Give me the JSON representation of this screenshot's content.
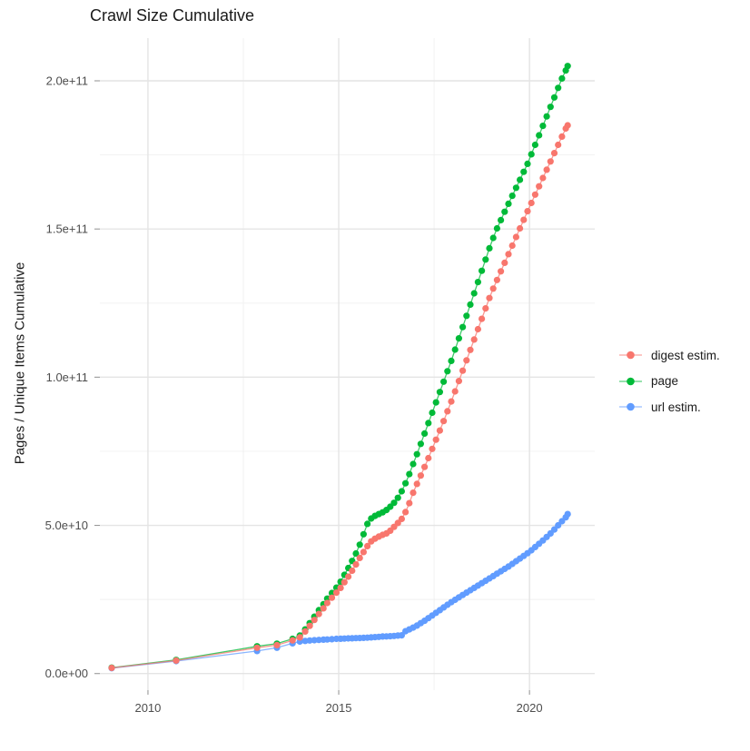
{
  "chart_data": {
    "type": "scatter",
    "title": "Crawl Size Cumulative",
    "xlabel": "",
    "ylabel": "Pages / Unique Items Cumulative",
    "legend_position": "right",
    "grid": true,
    "background": "#ffffff",
    "grid_major_color": "#e4e4e4",
    "grid_minor_color": "#f0f0f0",
    "tick_color": "#999999",
    "tick_label_color": "#4d4d4d",
    "x_domain": [
      2008.74,
      2021.71
    ],
    "y_domain_e9": [
      -5.6,
      214.4
    ],
    "x_major_ticks": [
      {
        "value": 2010,
        "label": "2010"
      },
      {
        "value": 2015,
        "label": "2015"
      },
      {
        "value": 2020,
        "label": "2020"
      }
    ],
    "x_minor_ticks": [
      2012.5,
      2017.5
    ],
    "y_major_ticks": [
      {
        "value_e9": 0,
        "label": "0.0e+00"
      },
      {
        "value_e9": 50,
        "label": "5.0e+10"
      },
      {
        "value_e9": 100,
        "label": "1.0e+11"
      },
      {
        "value_e9": 150,
        "label": "1.5e+11"
      },
      {
        "value_e9": 200,
        "label": "2.0e+11"
      }
    ],
    "y_minor_ticks_e9": [
      25,
      75,
      125,
      175
    ],
    "value_unit": "1e9",
    "draw_order": [
      1,
      2,
      0
    ],
    "x": [
      2009.05,
      2010.74,
      2012.86,
      2013.38,
      2013.79,
      2013.98,
      2014.12,
      2014.24,
      2014.36,
      2014.48,
      2014.6,
      2014.7,
      2014.82,
      2014.94,
      2015.05,
      2015.15,
      2015.25,
      2015.35,
      2015.45,
      2015.55,
      2015.65,
      2015.75,
      2015.85,
      2015.95,
      2016.05,
      2016.15,
      2016.25,
      2016.35,
      2016.45,
      2016.55,
      2016.65,
      2016.75,
      2016.85,
      2016.95,
      2017.05,
      2017.15,
      2017.25,
      2017.35,
      2017.45,
      2017.55,
      2017.65,
      2017.75,
      2017.85,
      2017.95,
      2018.05,
      2018.15,
      2018.25,
      2018.35,
      2018.45,
      2018.55,
      2018.65,
      2018.75,
      2018.85,
      2018.95,
      2019.05,
      2019.15,
      2019.25,
      2019.35,
      2019.45,
      2019.55,
      2019.65,
      2019.75,
      2019.85,
      2019.95,
      2020.05,
      2020.15,
      2020.25,
      2020.35,
      2020.45,
      2020.55,
      2020.65,
      2020.75,
      2020.85,
      2020.95,
      2021.0
    ],
    "series": [
      {
        "name": "digest estim.",
        "color": "#F8766D",
        "values_e9": [
          1.9,
          4.4,
          8.7,
          9.6,
          11.2,
          12.2,
          14.2,
          16.1,
          18.1,
          20.1,
          22.0,
          23.8,
          25.6,
          27.3,
          28.9,
          30.8,
          32.7,
          34.7,
          36.8,
          39.0,
          41.0,
          43.0,
          44.6,
          45.5,
          46.2,
          46.8,
          47.3,
          48.2,
          49.5,
          50.8,
          52.2,
          54.5,
          57.5,
          61.0,
          64.0,
          66.8,
          69.7,
          72.7,
          75.8,
          78.9,
          82.0,
          85.2,
          88.5,
          91.8,
          95.2,
          98.7,
          102.2,
          105.7,
          109.2,
          112.7,
          116.2,
          119.7,
          123.2,
          126.7,
          129.9,
          132.8,
          135.7,
          138.6,
          141.5,
          144.4,
          147.3,
          150.2,
          153.1,
          156.0,
          158.8,
          161.6,
          164.4,
          167.2,
          170.0,
          172.8,
          175.6,
          178.4,
          181.2,
          183.9,
          185.0
        ]
      },
      {
        "name": "page",
        "color": "#00BA38",
        "values_e9": [
          2.0,
          4.6,
          9.2,
          10.1,
          11.7,
          12.8,
          14.9,
          17.0,
          19.2,
          21.4,
          23.4,
          25.3,
          27.2,
          29.0,
          31.0,
          33.3,
          35.6,
          38.0,
          40.5,
          43.5,
          47.0,
          50.5,
          52.3,
          53.2,
          53.8,
          54.4,
          55.2,
          56.3,
          57.6,
          59.3,
          61.5,
          64.2,
          67.3,
          70.7,
          74.0,
          77.5,
          81.0,
          84.5,
          88.0,
          91.5,
          95.0,
          98.5,
          102.0,
          105.5,
          109.3,
          113.1,
          116.9,
          120.7,
          124.5,
          128.3,
          132.1,
          135.9,
          139.7,
          143.5,
          147.0,
          150.2,
          153.0,
          155.8,
          158.5,
          161.2,
          163.9,
          166.6,
          169.3,
          172.0,
          175.2,
          178.4,
          181.6,
          184.8,
          188.0,
          191.2,
          194.4,
          197.6,
          200.8,
          203.5,
          205.0
        ]
      },
      {
        "name": "url estim.",
        "color": "#619CFF",
        "values_e9": [
          1.8,
          4.2,
          7.6,
          8.7,
          10.2,
          10.8,
          11.0,
          11.15,
          11.25,
          11.35,
          11.45,
          11.5,
          11.6,
          11.7,
          11.75,
          11.8,
          11.85,
          11.9,
          11.95,
          12.0,
          12.05,
          12.1,
          12.2,
          12.3,
          12.4,
          12.5,
          12.55,
          12.6,
          12.7,
          12.8,
          12.9,
          14.3,
          14.9,
          15.5,
          16.2,
          17.0,
          17.8,
          18.7,
          19.6,
          20.5,
          21.4,
          22.3,
          23.2,
          24.1,
          24.9,
          25.7,
          26.5,
          27.3,
          28.1,
          28.9,
          29.7,
          30.5,
          31.3,
          32.1,
          32.9,
          33.7,
          34.5,
          35.3,
          36.1,
          37.0,
          37.9,
          38.8,
          39.7,
          40.6,
          41.6,
          42.7,
          43.8,
          44.9,
          46.1,
          47.3,
          48.6,
          50.0,
          51.4,
          52.7,
          53.8
        ]
      }
    ]
  }
}
